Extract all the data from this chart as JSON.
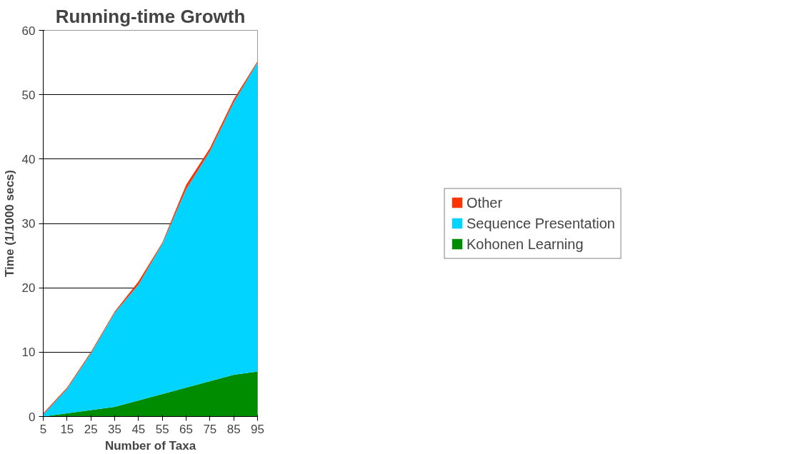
{
  "chart_data": {
    "type": "area",
    "title": "Running-time Growth",
    "xlabel": "Number of Taxa",
    "ylabel": "Time (1/1000 secs)",
    "categories": [
      "5",
      "15",
      "25",
      "35",
      "45",
      "55",
      "65",
      "75",
      "85",
      "95"
    ],
    "stacked": true,
    "series": [
      {
        "name": "Kohonen Learning",
        "color": "#008c00",
        "values": [
          0,
          0.5,
          1.0,
          1.5,
          2.5,
          3.5,
          4.5,
          5.5,
          6.5,
          7
        ]
      },
      {
        "name": "Sequence Presentation",
        "color": "#00d4ff",
        "values": [
          0.3,
          3.8,
          8.8,
          14.6,
          18,
          23.3,
          30.8,
          35.7,
          42.3,
          48
        ]
      },
      {
        "name": "Other",
        "color": "#ff3300",
        "values": [
          0.2,
          0.2,
          0.2,
          0.2,
          0.5,
          0.2,
          0.7,
          0.5,
          0.5,
          0.2
        ]
      }
    ],
    "ylim": [
      0,
      60
    ],
    "yticks": [
      0,
      10,
      20,
      30,
      40,
      50,
      60
    ],
    "grid": "y",
    "legend": "right"
  }
}
